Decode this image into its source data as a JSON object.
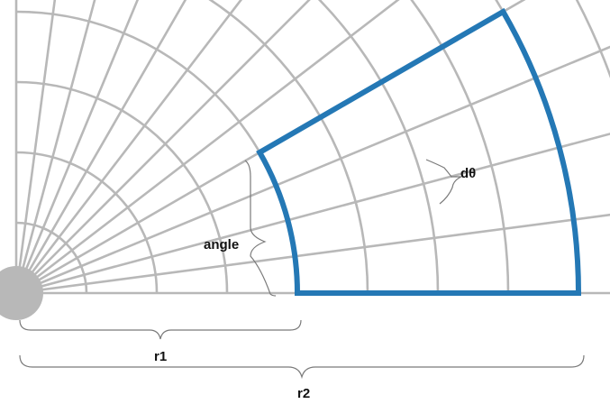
{
  "labels": {
    "angle": "angle",
    "dtheta": "dθ",
    "r1": "r1",
    "r2": "r2"
  },
  "colors": {
    "grid": "#b8b8b8",
    "sector": "#2478b5",
    "brace": "#7a7a7a",
    "text": "#111111"
  }
}
